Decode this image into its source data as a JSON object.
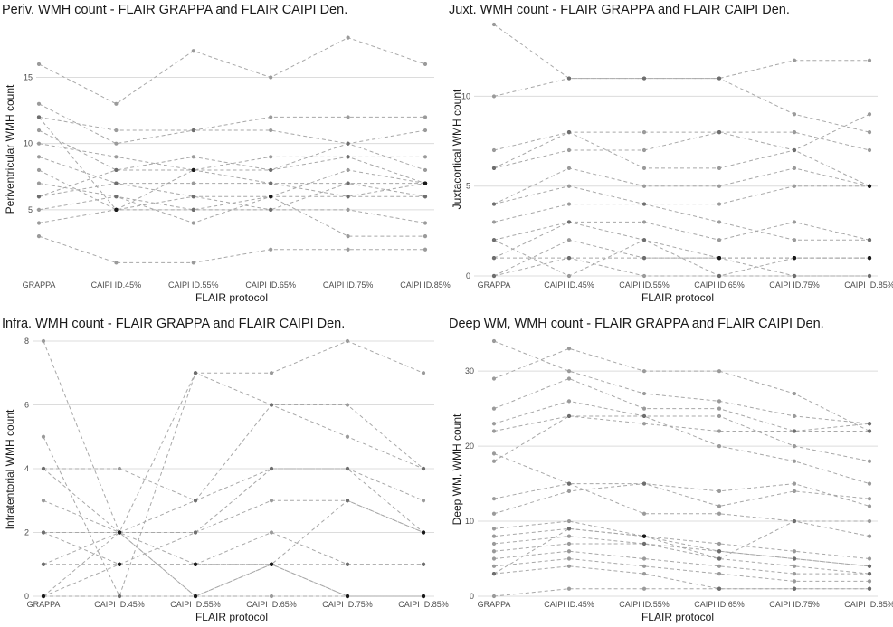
{
  "chart_data": [
    {
      "type": "line",
      "title": "Periv. WMH count - FLAIR GRAPPA and FLAIR CAIPI Den.",
      "xlabel": "FLAIR protocol",
      "ylabel": "Periventricular WMH count",
      "categories": [
        "GRAPPA",
        "CAIPI ID.45%",
        "CAIPI ID.55%",
        "CAIPI ID.65%",
        "CAIPI ID.75%",
        "CAIPI ID.85%"
      ],
      "ylim": [
        0,
        19
      ],
      "yticks": [
        5,
        10,
        15
      ],
      "series": [
        {
          "name": "s1",
          "values": [
            16,
            13,
            17,
            15,
            18,
            16
          ]
        },
        {
          "name": "s2",
          "values": [
            13,
            10,
            11,
            12,
            12,
            12
          ]
        },
        {
          "name": "s3",
          "values": [
            12,
            11,
            11,
            11,
            10,
            11
          ]
        },
        {
          "name": "s4",
          "values": [
            12,
            5,
            8,
            8,
            9,
            7
          ]
        },
        {
          "name": "s5",
          "values": [
            11,
            8,
            9,
            8,
            10,
            8
          ]
        },
        {
          "name": "s6",
          "values": [
            10,
            9,
            8,
            9,
            9,
            9
          ]
        },
        {
          "name": "s7",
          "values": [
            9,
            7,
            7,
            7,
            7,
            7
          ]
        },
        {
          "name": "s8",
          "values": [
            8,
            5,
            6,
            6,
            8,
            7
          ]
        },
        {
          "name": "s9",
          "values": [
            7,
            6,
            5,
            6,
            6,
            6
          ]
        },
        {
          "name": "s10",
          "values": [
            6,
            7,
            6,
            5,
            5,
            4
          ]
        },
        {
          "name": "s11",
          "values": [
            6,
            8,
            8,
            7,
            6,
            7
          ]
        },
        {
          "name": "s12",
          "values": [
            5,
            6,
            4,
            6,
            3,
            3
          ]
        },
        {
          "name": "s13",
          "values": [
            4,
            5,
            5,
            5,
            7,
            6
          ]
        },
        {
          "name": "s14",
          "values": [
            3,
            1,
            1,
            2,
            2,
            2
          ]
        }
      ]
    },
    {
      "type": "line",
      "title": "Juxt. WMH count - FLAIR GRAPPA and FLAIR CAIPI Den.",
      "xlabel": "FLAIR protocol",
      "ylabel": "Juxtacortical WMH count",
      "categories": [
        "GRAPPA",
        "CAIPI ID.45%",
        "CAIPI ID.55%",
        "CAIPI ID.65%",
        "CAIPI ID.75%",
        "CAIPI ID.85%"
      ],
      "ylim": [
        0,
        14
      ],
      "yticks": [
        0,
        5,
        10
      ],
      "series": [
        {
          "name": "s1",
          "values": [
            14,
            11,
            11,
            11,
            9,
            8
          ]
        },
        {
          "name": "s2",
          "values": [
            10,
            11,
            11,
            11,
            12,
            12
          ]
        },
        {
          "name": "s3",
          "values": [
            7,
            8,
            8,
            8,
            8,
            7
          ]
        },
        {
          "name": "s4",
          "values": [
            6,
            8,
            6,
            6,
            7,
            9
          ]
        },
        {
          "name": "s5",
          "values": [
            6,
            7,
            7,
            8,
            7,
            5
          ]
        },
        {
          "name": "s6",
          "values": [
            4,
            6,
            5,
            5,
            6,
            5
          ]
        },
        {
          "name": "s7",
          "values": [
            4,
            5,
            4,
            4,
            5,
            5
          ]
        },
        {
          "name": "s8",
          "values": [
            3,
            4,
            4,
            3,
            2,
            2
          ]
        },
        {
          "name": "s9",
          "values": [
            2,
            3,
            2,
            1,
            1,
            1
          ]
        },
        {
          "name": "s10",
          "values": [
            1,
            3,
            3,
            2,
            3,
            2
          ]
        },
        {
          "name": "s11",
          "values": [
            1,
            1,
            1,
            1,
            1,
            1
          ]
        },
        {
          "name": "s12",
          "values": [
            0,
            1,
            0,
            0,
            0,
            0
          ]
        },
        {
          "name": "s13",
          "values": [
            0,
            2,
            1,
            1,
            0,
            0
          ]
        },
        {
          "name": "s14",
          "values": [
            2,
            0,
            2,
            0,
            1,
            1
          ]
        }
      ]
    },
    {
      "type": "line",
      "title": "Infra. WMH count - FLAIR GRAPPA and FLAIR CAIPI Den.",
      "xlabel": "FLAIR protocol",
      "ylabel": "Infratentorial WMH count",
      "categories": [
        "GRAPPA",
        "CAIPI ID.45%",
        "CAIPI ID.55%",
        "CAIPI ID.65%",
        "CAIPI ID.75%",
        "CAIPI ID.85%"
      ],
      "ylim": [
        0,
        8
      ],
      "yticks": [
        0,
        2,
        4,
        6,
        8
      ],
      "series": [
        {
          "name": "s1",
          "values": [
            8,
            2,
            7,
            6,
            6,
            4
          ]
        },
        {
          "name": "s2",
          "values": [
            5,
            0,
            7,
            7,
            8,
            7
          ]
        },
        {
          "name": "s3",
          "values": [
            4,
            4,
            3,
            6,
            5,
            4
          ]
        },
        {
          "name": "s4",
          "values": [
            4,
            2,
            1,
            1,
            3,
            2
          ]
        },
        {
          "name": "s5",
          "values": [
            3,
            2,
            3,
            4,
            4,
            3
          ]
        },
        {
          "name": "s6",
          "values": [
            2,
            2,
            2,
            3,
            3,
            2
          ]
        },
        {
          "name": "s7",
          "values": [
            2,
            1,
            1,
            1,
            1,
            1
          ]
        },
        {
          "name": "s8",
          "values": [
            1,
            2,
            0,
            1,
            0,
            0
          ]
        },
        {
          "name": "s9",
          "values": [
            1,
            1,
            2,
            4,
            4,
            2
          ]
        },
        {
          "name": "s10",
          "values": [
            0,
            1,
            1,
            2,
            1,
            1
          ]
        },
        {
          "name": "s11",
          "values": [
            0,
            0,
            0,
            0,
            0,
            0
          ]
        },
        {
          "name": "s12",
          "values": [
            0,
            2,
            0,
            1,
            0,
            0
          ]
        }
      ]
    },
    {
      "type": "line",
      "title": "Deep WM, WMH count - FLAIR GRAPPA and FLAIR CAIPI Den.",
      "xlabel": "FLAIR protocol",
      "ylabel": "Deep WM, WMH count",
      "categories": [
        "GRAPPA",
        "CAIPI ID.45%",
        "CAIPI ID.55%",
        "CAIPI ID.65%",
        "CAIPI ID.75%",
        "CAIPI ID.85%"
      ],
      "ylim": [
        0,
        34
      ],
      "yticks": [
        0,
        10,
        20,
        30
      ],
      "series": [
        {
          "name": "s1",
          "values": [
            34,
            30,
            27,
            26,
            24,
            23
          ]
        },
        {
          "name": "s2",
          "values": [
            29,
            33,
            30,
            30,
            27,
            22
          ]
        },
        {
          "name": "s3",
          "values": [
            25,
            29,
            25,
            25,
            22,
            22
          ]
        },
        {
          "name": "s4",
          "values": [
            23,
            26,
            24,
            24,
            20,
            18
          ]
        },
        {
          "name": "s5",
          "values": [
            22,
            24,
            23,
            22,
            22,
            23
          ]
        },
        {
          "name": "s6",
          "values": [
            19,
            15,
            15,
            14,
            15,
            12
          ]
        },
        {
          "name": "s7",
          "values": [
            18,
            24,
            24,
            20,
            18,
            15
          ]
        },
        {
          "name": "s8",
          "values": [
            13,
            15,
            11,
            11,
            10,
            10
          ]
        },
        {
          "name": "s9",
          "values": [
            11,
            14,
            15,
            12,
            14,
            13
          ]
        },
        {
          "name": "s10",
          "values": [
            9,
            10,
            8,
            6,
            5,
            4
          ]
        },
        {
          "name": "s11",
          "values": [
            8,
            9,
            8,
            7,
            6,
            5
          ]
        },
        {
          "name": "s12",
          "values": [
            7,
            8,
            7,
            6,
            5,
            4
          ]
        },
        {
          "name": "s13",
          "values": [
            6,
            7,
            7,
            5,
            4,
            3
          ]
        },
        {
          "name": "s14",
          "values": [
            5,
            6,
            5,
            4,
            3,
            3
          ]
        },
        {
          "name": "s15",
          "values": [
            4,
            5,
            4,
            3,
            2,
            2
          ]
        },
        {
          "name": "s16",
          "values": [
            3,
            4,
            3,
            1,
            1,
            1
          ]
        },
        {
          "name": "s17",
          "values": [
            0,
            1,
            1,
            1,
            1,
            1
          ]
        },
        {
          "name": "s18",
          "values": [
            3,
            9,
            8,
            5,
            10,
            8
          ]
        }
      ]
    }
  ]
}
